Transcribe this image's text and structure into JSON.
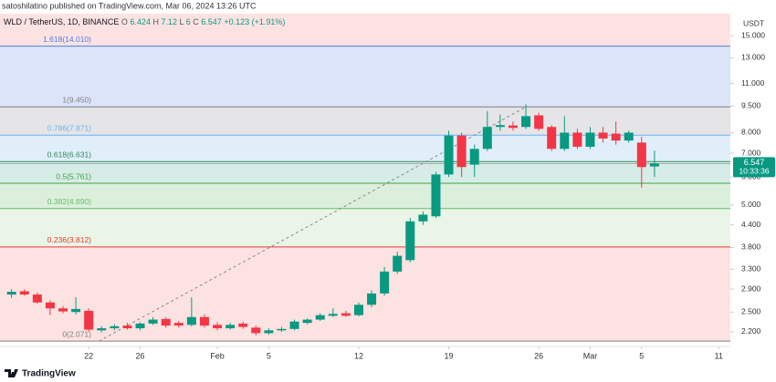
{
  "header": {
    "publisher": "satoshilatino published on TradingView.com, Mar 06, 2024 13:26 UTC",
    "brand": "TradingView"
  },
  "chart_data": {
    "type": "candlestick",
    "symbol": "WLD / TetherUS, 1D, BINANCE",
    "ohlc_legend": [
      {
        "key": "O",
        "value": 6.424
      },
      {
        "key": "H",
        "value": 7.12
      },
      {
        "key": "L",
        "value": 6.0
      },
      {
        "key": "C",
        "value": 6.547
      }
    ],
    "change": "+0.123 (+1.91%)",
    "currency": "USDT",
    "last_price": 6.547,
    "countdown": "10:33:36",
    "log_scale": true,
    "up_color": "#089981",
    "down_color": "#f23645",
    "x": [
      16,
      17,
      18,
      19,
      20,
      21,
      22,
      23,
      24,
      25,
      26,
      27,
      28,
      29,
      30,
      31,
      32,
      33,
      34,
      35,
      36,
      37,
      38,
      39,
      40,
      41,
      42,
      43,
      44,
      45,
      46,
      47,
      48,
      49,
      50,
      51,
      52,
      53,
      54,
      55,
      56,
      57,
      58,
      59,
      60,
      61,
      62,
      63,
      64,
      65,
      66
    ],
    "open": [
      2.8,
      2.86,
      2.8,
      2.66,
      2.56,
      2.5,
      2.52,
      2.22,
      2.25,
      2.29,
      2.25,
      2.32,
      2.39,
      2.33,
      2.3,
      2.42,
      2.3,
      2.25,
      2.32,
      2.26,
      2.18,
      2.22,
      2.24,
      2.33,
      2.38,
      2.44,
      2.48,
      2.45,
      2.62,
      2.82,
      3.25,
      3.5,
      4.5,
      4.65,
      6.1,
      7.85,
      6.5,
      7.2,
      8.3,
      8.38,
      8.3,
      8.95,
      8.3,
      7.2,
      8.0,
      7.3,
      8.0,
      7.95,
      7.6,
      7.5,
      6.424
    ],
    "high": [
      2.9,
      2.9,
      2.84,
      2.7,
      2.6,
      2.75,
      2.56,
      2.28,
      2.31,
      2.33,
      2.34,
      2.42,
      2.42,
      2.36,
      2.75,
      2.46,
      2.34,
      2.33,
      2.35,
      2.29,
      2.25,
      2.27,
      2.38,
      2.4,
      2.48,
      2.56,
      2.52,
      2.66,
      2.88,
      3.35,
      3.7,
      4.6,
      4.8,
      6.2,
      8.1,
      8.0,
      7.4,
      9.2,
      9.0,
      8.6,
      9.6,
      9.1,
      8.4,
      8.9,
      8.2,
      8.3,
      8.3,
      8.6,
      8.1,
      7.8,
      7.12
    ],
    "low": [
      2.74,
      2.78,
      2.64,
      2.45,
      2.48,
      2.46,
      2.2,
      2.19,
      2.22,
      2.23,
      2.22,
      2.3,
      2.26,
      2.26,
      2.28,
      2.26,
      2.22,
      2.23,
      2.24,
      2.15,
      2.16,
      2.2,
      2.22,
      2.31,
      2.36,
      2.42,
      2.42,
      2.43,
      2.58,
      2.78,
      3.2,
      3.45,
      4.4,
      4.6,
      6.0,
      6.0,
      6.0,
      7.1,
      8.1,
      8.1,
      8.2,
      8.1,
      7.1,
      7.1,
      7.2,
      7.2,
      7.5,
      7.4,
      7.5,
      5.6,
      6.0
    ],
    "close": [
      2.85,
      2.8,
      2.66,
      2.56,
      2.51,
      2.55,
      2.23,
      2.25,
      2.28,
      2.25,
      2.32,
      2.38,
      2.29,
      2.29,
      2.42,
      2.29,
      2.25,
      2.3,
      2.27,
      2.18,
      2.22,
      2.24,
      2.35,
      2.38,
      2.45,
      2.47,
      2.44,
      2.62,
      2.82,
      3.25,
      3.6,
      4.5,
      4.7,
      6.1,
      7.85,
      6.4,
      7.2,
      8.3,
      8.4,
      8.25,
      8.9,
      8.2,
      7.2,
      8.0,
      7.3,
      8.0,
      7.7,
      7.6,
      8.0,
      6.4,
      6.547
    ],
    "xlim": [
      15.1,
      71.9
    ],
    "xticks": [
      {
        "value": 22,
        "label": "22"
      },
      {
        "value": 26,
        "label": "26"
      },
      {
        "value": 32,
        "label": "Feb"
      },
      {
        "value": 36,
        "label": "5"
      },
      {
        "value": 43,
        "label": "12"
      },
      {
        "value": 50,
        "label": "19"
      },
      {
        "value": 57,
        "label": "26"
      },
      {
        "value": 61,
        "label": "Mar"
      },
      {
        "value": 65,
        "label": "5"
      },
      {
        "value": 71,
        "label": "11"
      }
    ],
    "ylim": [
      2.0,
      17.3
    ],
    "yticks": [
      {
        "value": 2.2,
        "label": "2.200"
      },
      {
        "value": 2.5,
        "label": "2.500"
      },
      {
        "value": 2.9,
        "label": "2.900"
      },
      {
        "value": 3.3,
        "label": "3.300"
      },
      {
        "value": 3.8,
        "label": "3.800"
      },
      {
        "value": 4.4,
        "label": "4.400"
      },
      {
        "value": 5,
        "label": "5.000"
      },
      {
        "value": 6,
        "label": "6.000"
      },
      {
        "value": 7,
        "label": "7.000"
      },
      {
        "value": 8,
        "label": "8.000"
      },
      {
        "value": 9.5,
        "label": "9.500"
      },
      {
        "value": 11,
        "label": "11.000"
      },
      {
        "value": 13,
        "label": "13.000"
      },
      {
        "value": 15,
        "label": "15.000"
      }
    ],
    "fib_anchor_x": [
      22.8,
      56
    ],
    "fib_top_zone_color": "#fde2e2",
    "fib_levels": [
      {
        "ratio": 1.618,
        "price": 14.01,
        "label": "1.618(14.010)",
        "color": "#4c7fe0",
        "zone_color": "#dce4fa"
      },
      {
        "ratio": 1,
        "price": 9.45,
        "label": "1(9.450)",
        "color": "#808080",
        "zone_color": "#e5e5e8"
      },
      {
        "ratio": 0.786,
        "price": 7.871,
        "label": "0.786(7.871)",
        "color": "#6fb2ec",
        "zone_color": "#e0eefa"
      },
      {
        "ratio": 0.618,
        "price": 6.631,
        "label": "0.618(6.631)",
        "color": "#2e8b57",
        "zone_color": "#d6ece6"
      },
      {
        "ratio": 0.5,
        "price": 5.761,
        "label": "0.5(5.761)",
        "color": "#43a047",
        "zone_color": "#dcefdc"
      },
      {
        "ratio": 0.382,
        "price": 4.89,
        "label": "0.382(4.890)",
        "color": "#66bb6a",
        "zone_color": "#e9f5e6"
      },
      {
        "ratio": 0.236,
        "price": 3.812,
        "label": "0.236(3.812)",
        "color": "#e53935",
        "zone_color": "#fde2e2"
      },
      {
        "ratio": 0,
        "price": 2.071,
        "label": "0(2.071)",
        "color": "#808080",
        "zone_color": null
      }
    ]
  }
}
